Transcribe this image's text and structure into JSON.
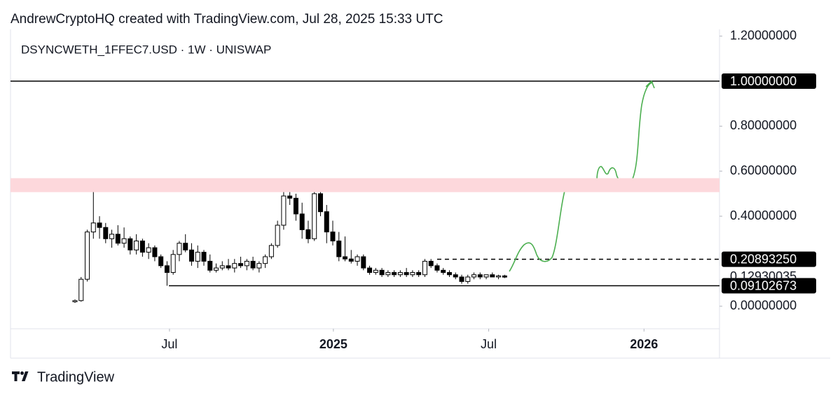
{
  "chart_data": {
    "type": "candlestick",
    "header": "AndrewCryptoHQ created with TradingView.com, Jul 28, 2025 15:33 UTC",
    "title": "DSYNCWETH_1FFEC7.USD · 1W · UNISWAP",
    "brand": "TradingView",
    "open": [
      0.02,
      0.025,
      0.12,
      0.33,
      0.37,
      0.35,
      0.3,
      0.32,
      0.28,
      0.3,
      0.25,
      0.29,
      0.24,
      0.26,
      0.22,
      0.18,
      0.15,
      0.23,
      0.28,
      0.25,
      0.2,
      0.24,
      0.2,
      0.16,
      0.17,
      0.18,
      0.17,
      0.19,
      0.18,
      0.2,
      0.17,
      0.19,
      0.22,
      0.27,
      0.36,
      0.49,
      0.48,
      0.41,
      0.34,
      0.3,
      0.5,
      0.42,
      0.33,
      0.29,
      0.22,
      0.21,
      0.2,
      0.22,
      0.17,
      0.15,
      0.16,
      0.14,
      0.15,
      0.14,
      0.15,
      0.14,
      0.15,
      0.14,
      0.2,
      0.18,
      0.16,
      0.15,
      0.14,
      0.13,
      0.11,
      0.13,
      0.14,
      0.13,
      0.14,
      0.13,
      0.135
    ],
    "high": [
      0.03,
      0.13,
      0.34,
      0.51,
      0.4,
      0.37,
      0.34,
      0.36,
      0.35,
      0.31,
      0.32,
      0.3,
      0.28,
      0.27,
      0.23,
      0.2,
      0.25,
      0.29,
      0.32,
      0.28,
      0.27,
      0.25,
      0.23,
      0.19,
      0.2,
      0.21,
      0.21,
      0.22,
      0.21,
      0.22,
      0.2,
      0.23,
      0.28,
      0.38,
      0.52,
      0.55,
      0.5,
      0.46,
      0.38,
      0.51,
      0.56,
      0.45,
      0.38,
      0.33,
      0.31,
      0.25,
      0.23,
      0.23,
      0.18,
      0.17,
      0.17,
      0.16,
      0.16,
      0.16,
      0.17,
      0.16,
      0.16,
      0.21,
      0.21,
      0.19,
      0.17,
      0.16,
      0.15,
      0.14,
      0.14,
      0.15,
      0.15,
      0.14,
      0.15,
      0.14,
      0.14
    ],
    "low": [
      0.015,
      0.02,
      0.11,
      0.3,
      0.3,
      0.28,
      0.26,
      0.27,
      0.26,
      0.23,
      0.23,
      0.22,
      0.21,
      0.2,
      0.17,
      0.091,
      0.14,
      0.2,
      0.24,
      0.18,
      0.17,
      0.18,
      0.15,
      0.15,
      0.16,
      0.16,
      0.15,
      0.17,
      0.16,
      0.16,
      0.15,
      0.17,
      0.21,
      0.26,
      0.34,
      0.45,
      0.38,
      0.3,
      0.28,
      0.29,
      0.4,
      0.28,
      0.27,
      0.2,
      0.2,
      0.19,
      0.18,
      0.16,
      0.14,
      0.14,
      0.13,
      0.13,
      0.13,
      0.13,
      0.13,
      0.13,
      0.13,
      0.13,
      0.17,
      0.15,
      0.14,
      0.13,
      0.12,
      0.1,
      0.1,
      0.12,
      0.12,
      0.12,
      0.13,
      0.12,
      0.125
    ],
    "close": [
      0.025,
      0.12,
      0.33,
      0.37,
      0.35,
      0.3,
      0.32,
      0.28,
      0.3,
      0.25,
      0.29,
      0.24,
      0.26,
      0.22,
      0.18,
      0.15,
      0.23,
      0.28,
      0.25,
      0.2,
      0.24,
      0.2,
      0.16,
      0.17,
      0.18,
      0.17,
      0.19,
      0.18,
      0.2,
      0.17,
      0.19,
      0.22,
      0.27,
      0.36,
      0.49,
      0.48,
      0.41,
      0.34,
      0.3,
      0.5,
      0.42,
      0.33,
      0.29,
      0.22,
      0.21,
      0.2,
      0.22,
      0.17,
      0.15,
      0.16,
      0.14,
      0.15,
      0.14,
      0.15,
      0.14,
      0.15,
      0.14,
      0.2,
      0.18,
      0.16,
      0.15,
      0.14,
      0.13,
      0.11,
      0.13,
      0.14,
      0.13,
      0.14,
      0.13,
      0.135,
      0.1293
    ],
    "up_color": "#ffffff",
    "down_color": "#000000",
    "xlim": [
      -10.5,
      105
    ],
    "xticks": [
      {
        "value": 15.4,
        "label": "Jul"
      },
      {
        "value": 42.1,
        "label": "2025"
      },
      {
        "value": 67.4,
        "label": "Jul"
      },
      {
        "value": 92.7,
        "label": "2026"
      }
    ],
    "ylim": [
      -0.1,
      1.23
    ],
    "yticks": [
      {
        "value": 0,
        "label": "0.00000000"
      },
      {
        "value": 0.4,
        "label": "0.40000000"
      },
      {
        "value": 0.6,
        "label": "0.60000000"
      },
      {
        "value": 0.8,
        "label": "0.80000000"
      },
      {
        "value": 1.2,
        "label": "1.20000000"
      }
    ],
    "zone": {
      "range": [
        0.507,
        0.569
      ],
      "color": "#fdd8dc"
    },
    "levels": [
      {
        "value": 1.0,
        "label": "1.00000000",
        "style": "solid"
      },
      {
        "value": 0.2089325,
        "label": "0.20893250",
        "style": "dashed"
      },
      {
        "value": 0.09102673,
        "label": "0.09102673",
        "style": "solid"
      }
    ],
    "last_price": {
      "value": 0.12930035,
      "label": "0.12930035"
    }
  }
}
